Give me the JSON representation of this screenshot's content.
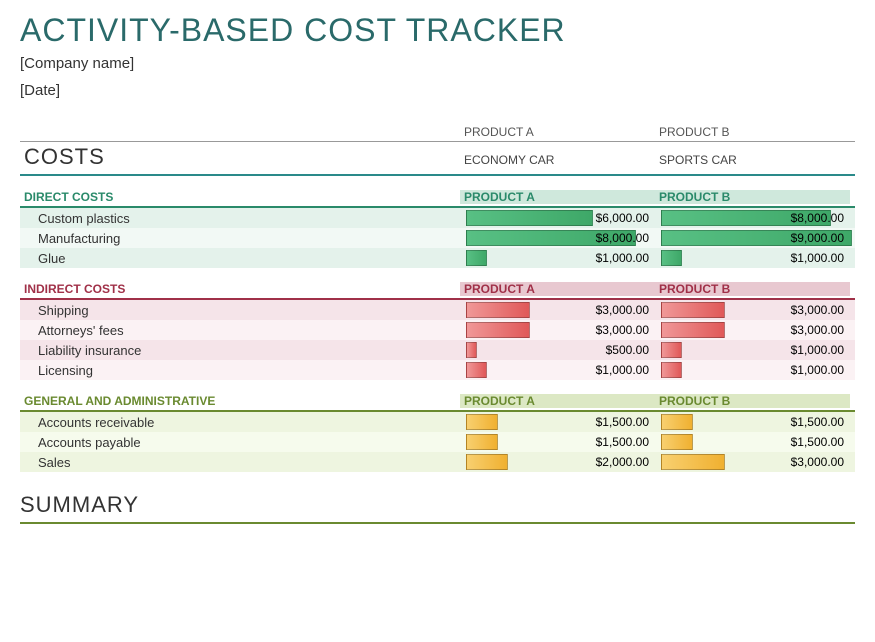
{
  "header": {
    "title": "ACTIVITY-BASED COST TRACKER",
    "company_placeholder": "[Company name]",
    "date_placeholder": "[Date]"
  },
  "products": {
    "col_a_title": "PRODUCT A",
    "col_b_title": "PRODUCT B",
    "col_a_name": "ECONOMY CAR",
    "col_b_name": "SPORTS CAR"
  },
  "costs_label": "COSTS",
  "summary_label": "SUMMARY",
  "styling": {
    "bar_scale_max": 9000,
    "colors": {
      "title_color": "#2a6a6a",
      "direct_header": "#2a8a6a",
      "indirect_header": "#a03048",
      "ga_header": "#6a8a30",
      "bar_green_from": "#58c084",
      "bar_green_to": "#3ea868",
      "bar_red_from": "#f09898",
      "bar_red_to": "#e05858",
      "bar_orange_from": "#f8d070",
      "bar_orange_to": "#f0b030"
    },
    "font_family": "Segoe UI",
    "title_fontsize_pt": 24,
    "section_title_fontsize_pt": 9,
    "data_fontsize_pt": 10
  },
  "sections": [
    {
      "key": "direct",
      "title": "DIRECT COSTS",
      "color_class": "green",
      "bar_class": "green",
      "row_class": "row-green",
      "row_alt_class": "row-green-alt",
      "col_a_header": "PRODUCT A",
      "col_b_header": "PRODUCT B",
      "rows": [
        {
          "label": "Custom plastics",
          "a_value": 6000,
          "a_text": "$6,000.00",
          "b_value": 8000,
          "b_text": "$8,000.00"
        },
        {
          "label": "Manufacturing",
          "a_value": 8000,
          "a_text": "$8,000.00",
          "b_value": 9000,
          "b_text": "$9,000.00"
        },
        {
          "label": "Glue",
          "a_value": 1000,
          "a_text": "$1,000.00",
          "b_value": 1000,
          "b_text": "$1,000.00"
        }
      ]
    },
    {
      "key": "indirect",
      "title": "INDIRECT COSTS",
      "color_class": "red",
      "bar_class": "red",
      "row_class": "row-pink",
      "row_alt_class": "row-pink-alt",
      "col_a_header": "PRODUCT A",
      "col_b_header": "PRODUCT B",
      "rows": [
        {
          "label": "Shipping",
          "a_value": 3000,
          "a_text": "$3,000.00",
          "b_value": 3000,
          "b_text": "$3,000.00"
        },
        {
          "label": "Attorneys' fees",
          "a_value": 3000,
          "a_text": "$3,000.00",
          "b_value": 3000,
          "b_text": "$3,000.00"
        },
        {
          "label": "Liability insurance",
          "a_value": 500,
          "a_text": "$500.00",
          "b_value": 1000,
          "b_text": "$1,000.00"
        },
        {
          "label": "Licensing",
          "a_value": 1000,
          "a_text": "$1,000.00",
          "b_value": 1000,
          "b_text": "$1,000.00"
        }
      ]
    },
    {
      "key": "ga",
      "title": "GENERAL AND ADMINISTRATIVE",
      "color_class": "olive",
      "bar_class": "orange",
      "row_class": "row-olive",
      "row_alt_class": "row-olive-alt",
      "col_a_header": "PRODUCT A",
      "col_b_header": "PRODUCT B",
      "rows": [
        {
          "label": "Accounts receivable",
          "a_value": 1500,
          "a_text": "$1,500.00",
          "b_value": 1500,
          "b_text": "$1,500.00"
        },
        {
          "label": "Accounts payable",
          "a_value": 1500,
          "a_text": "$1,500.00",
          "b_value": 1500,
          "b_text": "$1,500.00"
        },
        {
          "label": "Sales",
          "a_value": 2000,
          "a_text": "$2,000.00",
          "b_value": 3000,
          "b_text": "$3,000.00"
        }
      ]
    }
  ]
}
